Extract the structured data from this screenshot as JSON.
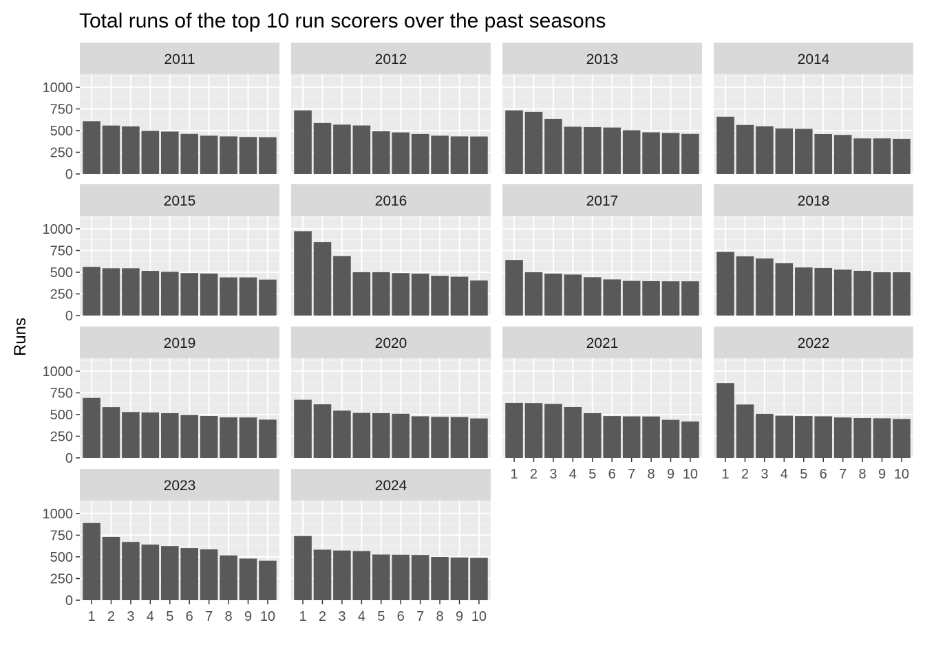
{
  "chart_data": {
    "type": "bar",
    "title": "Total runs of the top 10 run scorers over the past seasons",
    "xlabel": "",
    "ylabel": "Runs",
    "categories": [
      "1",
      "2",
      "3",
      "4",
      "5",
      "6",
      "7",
      "8",
      "9",
      "10"
    ],
    "yticks": [
      "0",
      "250",
      "500",
      "750",
      "1000"
    ],
    "ylim": [
      0,
      1150
    ],
    "grid": true,
    "facets": [
      {
        "label": "2011",
        "values": [
          608,
          558,
          549,
          498,
          489,
          462,
          441,
          433,
          426,
          424
        ]
      },
      {
        "label": "2012",
        "values": [
          733,
          588,
          569,
          559,
          493,
          479,
          461,
          441,
          433,
          432
        ]
      },
      {
        "label": "2013",
        "values": [
          733,
          715,
          635,
          545,
          540,
          535,
          504,
          480,
          473,
          462
        ]
      },
      {
        "label": "2014",
        "values": [
          660,
          565,
          550,
          525,
          520,
          460,
          450,
          410,
          410,
          405
        ]
      },
      {
        "label": "2015",
        "values": [
          562,
          545,
          545,
          515,
          505,
          490,
          485,
          440,
          440,
          415
        ]
      },
      {
        "label": "2016",
        "values": [
          973,
          848,
          687,
          501,
          501,
          490,
          484,
          459,
          448,
          405
        ]
      },
      {
        "label": "2017",
        "values": [
          641,
          500,
          484,
          473,
          442,
          417,
          400,
          397,
          395,
          395
        ]
      },
      {
        "label": "2018",
        "values": [
          735,
          684,
          659,
          604,
          555,
          548,
          530,
          516,
          500,
          500
        ]
      },
      {
        "label": "2019",
        "values": [
          692,
          586,
          529,
          524,
          516,
          495,
          484,
          467,
          466,
          441
        ]
      },
      {
        "label": "2020",
        "values": [
          670,
          618,
          545,
          519,
          516,
          509,
          480,
          473,
          471,
          455
        ]
      },
      {
        "label": "2021",
        "values": [
          635,
          633,
          622,
          587,
          516,
          483,
          479,
          478,
          439,
          419
        ]
      },
      {
        "label": "2022",
        "values": [
          863,
          616,
          508,
          487,
          483,
          480,
          466,
          460,
          457,
          449
        ]
      },
      {
        "label": "2023",
        "values": [
          890,
          730,
          672,
          641,
          625,
          602,
          586,
          516,
          480,
          455
        ]
      },
      {
        "label": "2024",
        "values": [
          741,
          583,
          573,
          567,
          527,
          525,
          522,
          500,
          493,
          489
        ]
      }
    ],
    "colors": {
      "panel_background": "#EBEBEB",
      "strip_background": "#D9D9D9",
      "grid_major": "#FFFFFF",
      "grid_minor": "#F5F5F5",
      "bar_fill": "#595959",
      "tick_color": "#333333"
    }
  }
}
